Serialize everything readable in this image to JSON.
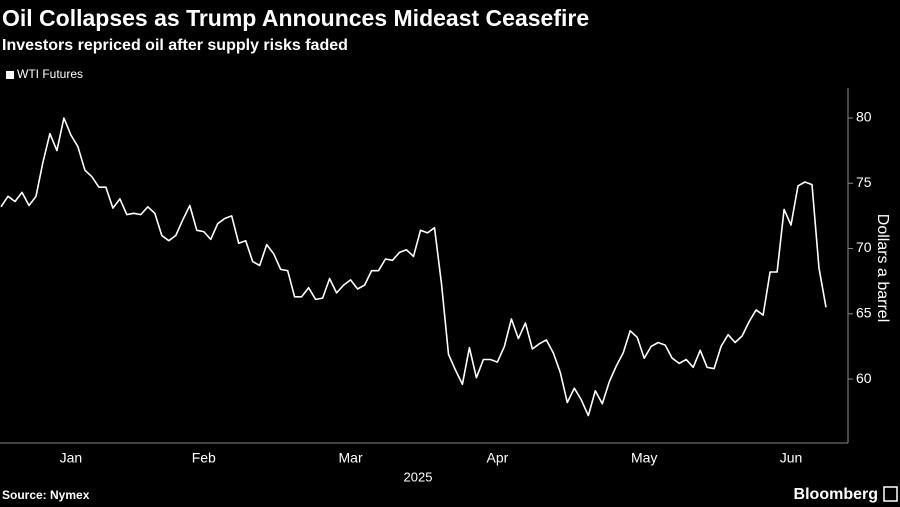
{
  "chart_data": {
    "type": "line",
    "title": "Oil Collapses as Trump Announces Mideast Ceasefire",
    "subtitle": "Investors repriced oil after supply risks faded",
    "y_label": "Dollars a barrel",
    "x_axis_label": "2025",
    "source": "Source: Nymex",
    "brand": "Bloomberg",
    "legend": "top-left",
    "categories": [
      null,
      null,
      null,
      null,
      null,
      null,
      null,
      null,
      null,
      null,
      "Jan",
      null,
      null,
      null,
      null,
      null,
      null,
      null,
      null,
      null,
      null,
      null,
      null,
      null,
      null,
      null,
      null,
      null,
      null,
      "Feb",
      null,
      null,
      null,
      null,
      null,
      null,
      null,
      null,
      null,
      null,
      null,
      null,
      null,
      null,
      null,
      null,
      null,
      null,
      null,
      null,
      "Mar",
      null,
      null,
      null,
      null,
      null,
      null,
      null,
      null,
      null,
      null,
      null,
      null,
      null,
      null,
      null,
      null,
      null,
      null,
      null,
      null,
      "Apr",
      null,
      null,
      null,
      null,
      null,
      null,
      null,
      null,
      null,
      null,
      null,
      null,
      null,
      null,
      null,
      null,
      null,
      null,
      null,
      null,
      "May",
      null,
      null,
      null,
      null,
      null,
      null,
      null,
      null,
      null,
      null,
      null,
      null,
      null,
      null,
      null,
      null,
      null,
      null,
      null,
      null,
      "Jun",
      null,
      null,
      null,
      null,
      null
    ],
    "series": [
      {
        "name": "WTI Futures",
        "color": "#ffffff",
        "values": [
          73.2,
          74,
          73.6,
          74.3,
          73.3,
          74,
          76.6,
          78.8,
          77.5,
          80,
          78.7,
          77.8,
          76,
          75.5,
          74.7,
          74.7,
          73.1,
          73.8,
          72.6,
          72.7,
          72.6,
          73.2,
          72.7,
          71,
          70.6,
          71,
          72.2,
          73.3,
          71.4,
          71.3,
          70.7,
          71.9,
          72.3,
          72.5,
          70.4,
          70.6,
          69,
          68.7,
          70.3,
          69.6,
          68.4,
          68.3,
          66.3,
          66.3,
          67,
          66.1,
          66.2,
          67.7,
          66.6,
          67.2,
          67.6,
          66.9,
          67.2,
          68.3,
          68.3,
          69.2,
          69.1,
          69.7,
          69.9,
          69.4,
          71.4,
          71.2,
          71.6,
          67.3,
          61.9,
          60.7,
          59.6,
          62.4,
          60.1,
          61.5,
          61.5,
          61.3,
          62.5,
          64.6,
          63.1,
          64.3,
          62.3,
          62.7,
          63,
          62,
          60.5,
          58.2,
          59.3,
          58.4,
          57.2,
          59.1,
          58.1,
          59.8,
          61,
          62,
          63.7,
          63.2,
          61.6,
          62.5,
          62.8,
          62.6,
          61.6,
          61.2,
          61.5,
          60.9,
          62.2,
          60.9,
          60.8,
          62.5,
          63.4,
          62.8,
          63.3,
          64.4,
          65.3,
          64.9,
          68.2,
          68.2,
          73,
          71.8,
          74.8,
          75.1,
          74.9,
          68.5,
          65.5
        ]
      }
    ],
    "ylim": [
      55.1,
      82.3
    ],
    "yticks": [
      60,
      65,
      70,
      75,
      80
    ],
    "grid": false
  }
}
